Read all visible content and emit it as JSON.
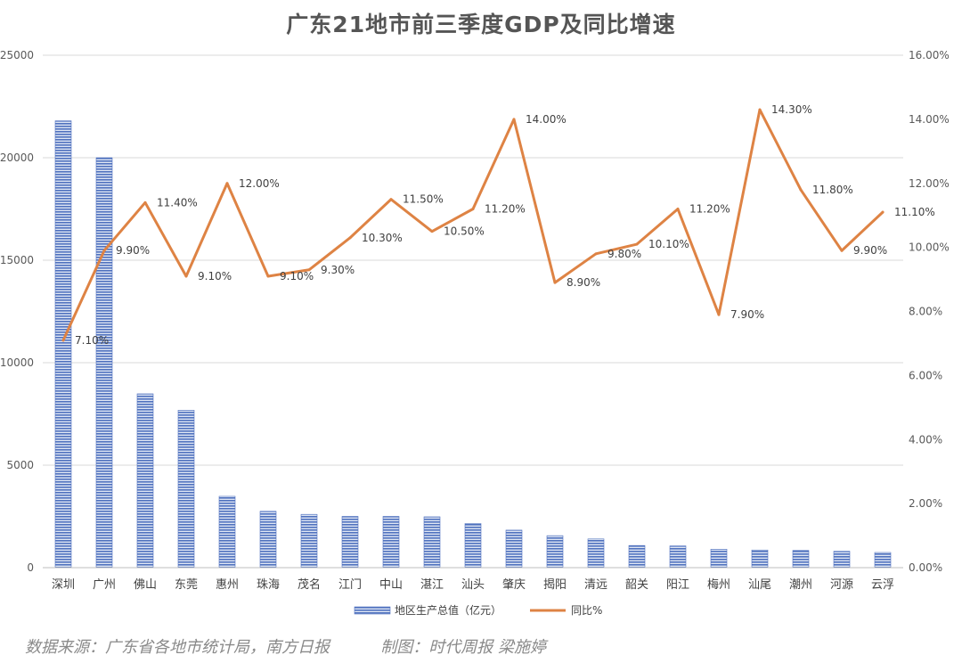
{
  "chart_data": {
    "type": "bar+line",
    "title": "广东21地市前三季度GDP及同比增速",
    "categories": [
      "深圳",
      "广州",
      "佛山",
      "东莞",
      "惠州",
      "珠海",
      "茂名",
      "江门",
      "中山",
      "湛江",
      "汕头",
      "肇庆",
      "揭阳",
      "清远",
      "韶关",
      "阳江",
      "梅州",
      "汕尾",
      "潮州",
      "河源",
      "云浮"
    ],
    "series": [
      {
        "name": "地区生产总值（亿元）",
        "type": "bar",
        "axis": "left",
        "color": "#4f71be",
        "values": [
          21800,
          20000,
          8480,
          7680,
          3480,
          2750,
          2600,
          2500,
          2500,
          2480,
          2150,
          1830,
          1560,
          1400,
          1080,
          1060,
          900,
          860,
          840,
          800,
          740
        ]
      },
      {
        "name": "同比%",
        "type": "line",
        "axis": "right",
        "color": "#de8344",
        "values": [
          7.1,
          9.9,
          11.4,
          9.1,
          12.0,
          9.1,
          9.3,
          10.3,
          11.5,
          10.5,
          11.2,
          14.0,
          8.9,
          9.8,
          10.1,
          11.2,
          7.9,
          14.3,
          11.8,
          9.9,
          11.1
        ],
        "labels": [
          "7.10%",
          "9.90%",
          "11.40%",
          "9.10%",
          "12.00%",
          "9.10%",
          "9.30%",
          "10.30%",
          "11.50%",
          "10.50%",
          "11.20%",
          "14.00%",
          "8.90%",
          "9.80%",
          "10.10%",
          "11.20%",
          "7.90%",
          "14.30%",
          "11.80%",
          "9.90%",
          "11.10%"
        ]
      }
    ],
    "y_left": {
      "ylim": [
        0,
        25000
      ],
      "ticks": [
        "0",
        "5000",
        "10000",
        "15000",
        "20000",
        "25000"
      ]
    },
    "y_right": {
      "ylim": [
        0,
        16
      ],
      "ticks": [
        "0.00%",
        "2.00%",
        "4.00%",
        "6.00%",
        "8.00%",
        "10.00%",
        "12.00%",
        "14.00%",
        "16.00%"
      ]
    },
    "grid": true,
    "legend_position": "bottom"
  },
  "footer": {
    "source": "数据来源：广东省各地市统计局，南方日报",
    "credit": "制图：时代周报 梁施婷"
  }
}
